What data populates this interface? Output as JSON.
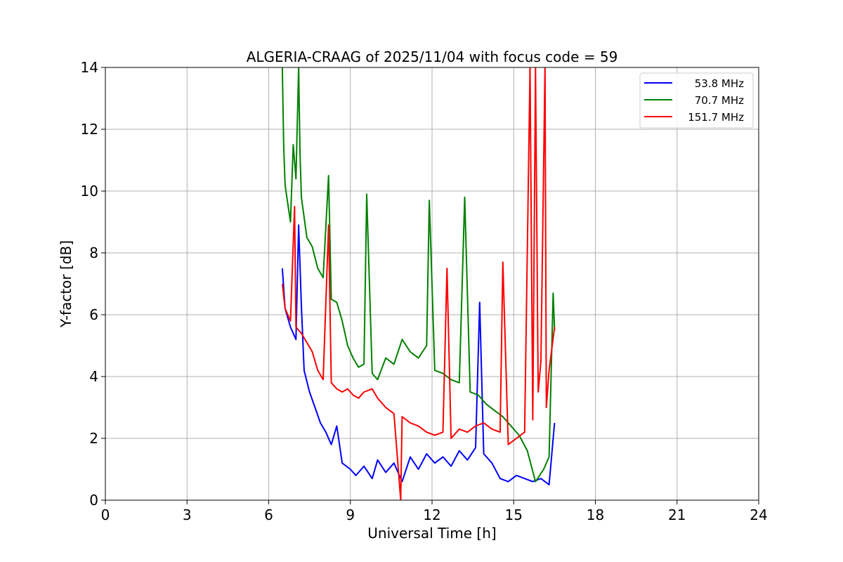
{
  "chart_data": {
    "type": "line",
    "title": "ALGERIA-CRAAG of 2025/11/04 with focus code = 59",
    "xlabel": "Universal Time [h]",
    "ylabel": "Y-factor [dB]",
    "xlim": [
      0,
      24
    ],
    "ylim": [
      0,
      14
    ],
    "xticks": [
      0,
      3,
      6,
      9,
      12,
      15,
      18,
      21,
      24
    ],
    "yticks": [
      0,
      2,
      4,
      6,
      8,
      10,
      12,
      14
    ],
    "grid": true,
    "legend_position": "top-right",
    "series": [
      {
        "name": "53.8 MHz",
        "color": "#0000ff",
        "x": [
          6.5,
          6.6,
          6.8,
          7.0,
          7.1,
          7.2,
          7.3,
          7.5,
          7.7,
          7.9,
          8.1,
          8.3,
          8.5,
          8.7,
          9.0,
          9.2,
          9.5,
          9.8,
          10.0,
          10.3,
          10.6,
          10.9,
          11.2,
          11.5,
          11.8,
          12.1,
          12.4,
          12.7,
          13.0,
          13.3,
          13.6,
          13.75,
          13.9,
          14.2,
          14.5,
          14.8,
          15.1,
          15.4,
          15.7,
          16.0,
          16.3,
          16.5
        ],
        "y": [
          7.5,
          6.2,
          5.6,
          5.2,
          8.9,
          6.3,
          4.2,
          3.5,
          3.0,
          2.5,
          2.2,
          1.8,
          2.4,
          1.2,
          1.0,
          0.8,
          1.1,
          0.7,
          1.3,
          0.9,
          1.2,
          0.6,
          1.4,
          1.0,
          1.5,
          1.2,
          1.4,
          1.1,
          1.6,
          1.3,
          1.7,
          6.4,
          1.5,
          1.2,
          0.7,
          0.6,
          0.8,
          0.7,
          0.6,
          0.7,
          0.5,
          2.5
        ]
      },
      {
        "name": "70.7 MHz",
        "color": "#008000",
        "x": [
          6.5,
          6.55,
          6.6,
          6.7,
          6.8,
          6.9,
          7.0,
          7.1,
          7.15,
          7.2,
          7.4,
          7.6,
          7.8,
          8.0,
          8.2,
          8.3,
          8.5,
          8.7,
          8.9,
          9.1,
          9.3,
          9.5,
          9.6,
          9.8,
          10.0,
          10.3,
          10.6,
          10.9,
          11.2,
          11.5,
          11.8,
          11.9,
          12.1,
          12.4,
          12.7,
          13.0,
          13.2,
          13.4,
          13.7,
          14.0,
          14.3,
          14.6,
          14.9,
          15.2,
          15.5,
          15.8,
          16.1,
          16.3,
          16.45,
          16.5
        ],
        "y": [
          14.0,
          11.5,
          10.2,
          9.6,
          9.0,
          11.5,
          10.4,
          14.0,
          11.2,
          9.8,
          8.5,
          8.2,
          7.5,
          7.2,
          10.5,
          6.5,
          6.4,
          5.8,
          5.0,
          4.6,
          4.3,
          4.4,
          9.9,
          4.1,
          3.9,
          4.6,
          4.4,
          5.2,
          4.8,
          4.6,
          5.0,
          9.7,
          4.2,
          4.1,
          3.9,
          3.8,
          9.8,
          3.5,
          3.4,
          3.1,
          2.9,
          2.7,
          2.4,
          2.1,
          1.6,
          0.6,
          1.0,
          1.4,
          6.7,
          5.5
        ]
      },
      {
        "name": "151.7 MHz",
        "color": "#ff0000",
        "x": [
          6.5,
          6.6,
          6.8,
          6.95,
          7.0,
          7.2,
          7.4,
          7.6,
          7.8,
          8.0,
          8.2,
          8.3,
          8.5,
          8.7,
          8.9,
          9.1,
          9.3,
          9.5,
          9.8,
          10.0,
          10.3,
          10.6,
          10.85,
          10.9,
          11.2,
          11.5,
          11.8,
          12.1,
          12.4,
          12.55,
          12.7,
          13.0,
          13.3,
          13.6,
          13.9,
          14.2,
          14.5,
          14.6,
          14.8,
          15.1,
          15.4,
          15.6,
          15.7,
          15.8,
          15.9,
          16.0,
          16.15,
          16.2,
          16.3,
          16.5
        ],
        "y": [
          7.0,
          6.2,
          5.8,
          9.5,
          5.6,
          5.4,
          5.1,
          4.8,
          4.2,
          3.9,
          8.9,
          3.8,
          3.6,
          3.5,
          3.6,
          3.4,
          3.3,
          3.5,
          3.6,
          3.3,
          3.0,
          2.8,
          0.0,
          2.7,
          2.5,
          2.4,
          2.2,
          2.1,
          2.2,
          7.5,
          2.0,
          2.3,
          2.2,
          2.4,
          2.5,
          2.3,
          2.2,
          7.7,
          1.8,
          2.0,
          2.2,
          14.0,
          2.6,
          14.0,
          3.5,
          4.5,
          14.0,
          3.0,
          4.2,
          5.6
        ]
      }
    ]
  }
}
